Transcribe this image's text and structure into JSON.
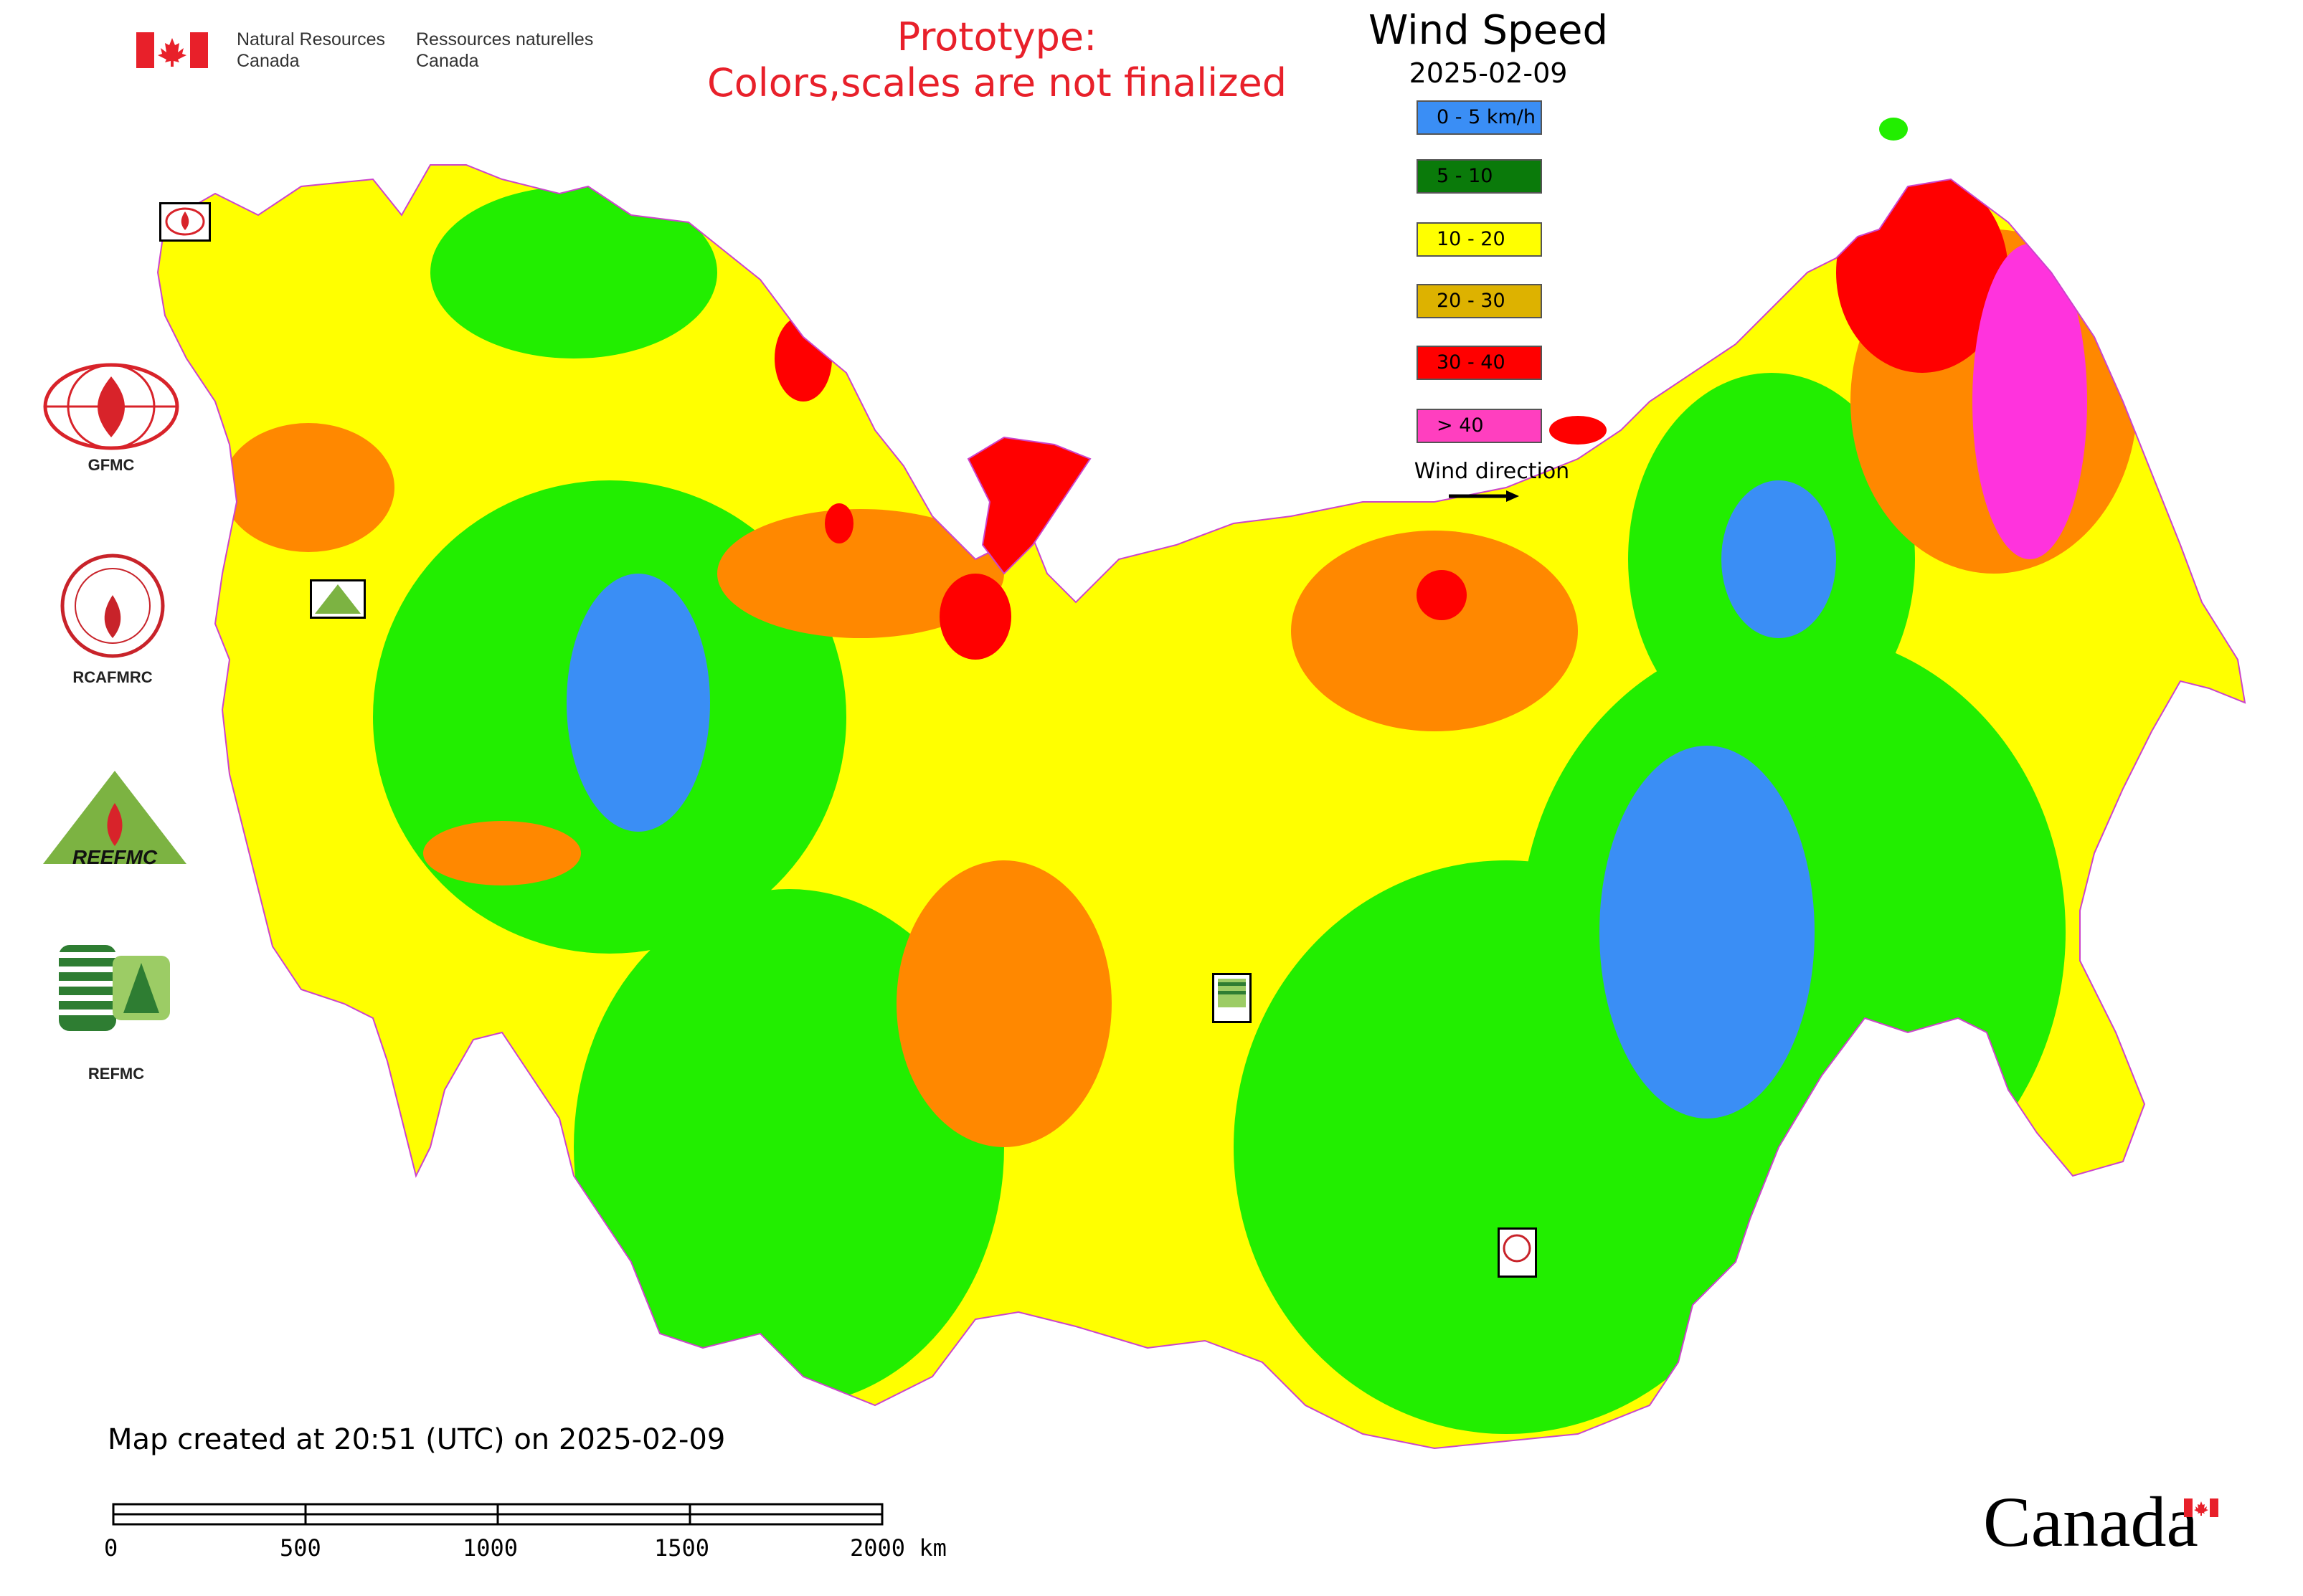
{
  "header": {
    "dept_en": [
      "Natural Resources",
      "Canada"
    ],
    "dept_fr": [
      "Ressources naturelles",
      "Canada"
    ],
    "prototype_lines": [
      "Prototype:",
      "Colors,scales are not finalized"
    ]
  },
  "legend": {
    "title": "Wind Speed",
    "date": "2025-02-09",
    "items": [
      {
        "label": "0 - 5 km/h",
        "color": "#3a8ef5"
      },
      {
        "label": "5 - 10",
        "color": "#0a7a0a"
      },
      {
        "label": "10 - 20",
        "color": "#ffff00"
      },
      {
        "label": "20 - 30",
        "color": "#ddb200"
      },
      {
        "label": "30 - 40",
        "color": "#ff0000"
      },
      {
        "label": "> 40",
        "color": "#ff3fbf"
      }
    ],
    "wind_direction_label": "Wind direction"
  },
  "organizations": [
    {
      "label": "GFMC",
      "icon": "gfmc-logo-icon"
    },
    {
      "label": "RCAFMRC",
      "icon": "rcafmrc-logo-icon"
    },
    {
      "label": "REEFMC",
      "icon": "reefmc-triangle-logo-icon"
    },
    {
      "label": "REFMC",
      "icon": "refmc-logo-icon"
    }
  ],
  "map_colors": {
    "calm": "#3a8ef5",
    "light": "#22ee00",
    "moderate": "#ffff00",
    "fresh": "#ff8800",
    "strong": "#ff0000",
    "gale": "#ff33dd"
  },
  "footer": {
    "created": "Map created at 20:51 (UTC) on 2025-02-09",
    "scale_ticks": [
      "0",
      "500",
      "1000",
      "1500",
      "2000 km"
    ],
    "brand": "Canada"
  }
}
